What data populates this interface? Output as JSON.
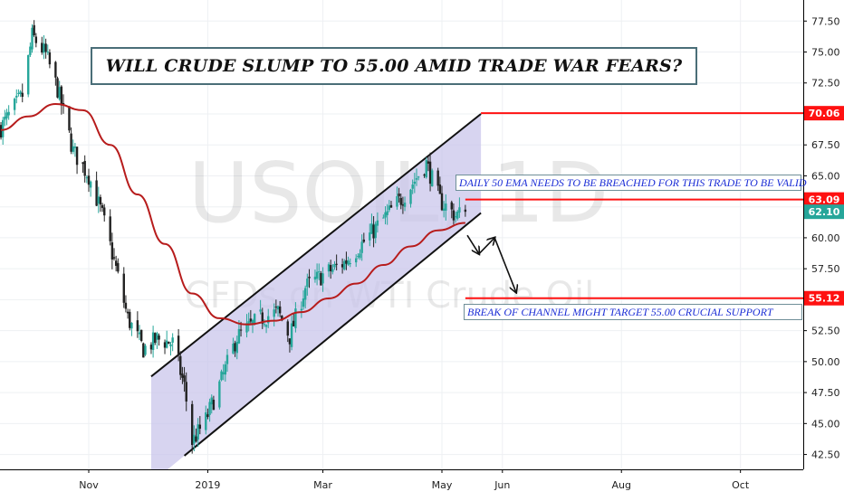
{
  "title": "WILL CRUDE SLUMP TO 55.00 AMID TRADE WAR FEARS?",
  "notes": {
    "ema": "DAILY 50 EMA NEEDS TO BE BREACHED FOR THIS TRADE TO BE VALID",
    "break": "BREAK OF CHANNEL MIGHT TARGET 55.00 CRUCIAL SUPPORT"
  },
  "watermark": {
    "symbol": "USOIL, 1D",
    "description": "CFDs on WTI Crude Oil"
  },
  "colors": {
    "up": "#26a69a",
    "down": "#222222",
    "ema": "#b71c1c",
    "level": "#ff1111",
    "last": "#26a69a",
    "channel_fill": "#c7c3ea",
    "text_blue": "#1d2fd6"
  },
  "chart_data": {
    "type": "candlestick",
    "symbol": "USOIL",
    "timeframe": "1D",
    "x_ticks": [
      "Nov",
      "2019",
      "Mar",
      "May",
      "Jun",
      "Aug",
      "Oct"
    ],
    "y_ticks": [
      "42.50",
      "45.00",
      "47.50",
      "50.00",
      "52.50",
      "55.00",
      "57.50",
      "60.00",
      "62.50",
      "65.00",
      "67.50",
      "70.00",
      "72.50",
      "75.00",
      "77.50"
    ],
    "ylim": [
      41.3,
      79.2
    ],
    "price_path": [
      [
        "2018-09-17",
        68.9
      ],
      [
        "2018-09-28",
        71.5
      ],
      [
        "2018-10-03",
        76.3
      ],
      [
        "2018-10-10",
        74.8
      ],
      [
        "2018-10-16",
        72.0
      ],
      [
        "2018-10-24",
        67.0
      ],
      [
        "2018-11-01",
        65.0
      ],
      [
        "2018-11-08",
        61.8
      ],
      [
        "2018-11-15",
        57.5
      ],
      [
        "2018-11-21",
        53.5
      ],
      [
        "2018-11-29",
        51.0
      ],
      [
        "2018-12-06",
        51.8
      ],
      [
        "2018-12-14",
        51.5
      ],
      [
        "2018-12-20",
        48.0
      ],
      [
        "2018-12-24",
        43.5
      ],
      [
        "2018-12-31",
        45.3
      ],
      [
        "2019-01-08",
        48.5
      ],
      [
        "2019-01-16",
        52.0
      ],
      [
        "2019-01-28",
        53.5
      ],
      [
        "2019-02-06",
        54.0
      ],
      [
        "2019-02-12",
        52.0
      ],
      [
        "2019-02-20",
        56.0
      ],
      [
        "2019-03-01",
        57.0
      ],
      [
        "2019-03-12",
        58.0
      ],
      [
        "2019-03-21",
        59.5
      ],
      [
        "2019-04-01",
        61.5
      ],
      [
        "2019-04-12",
        63.5
      ],
      [
        "2019-04-23",
        66.0
      ],
      [
        "2019-04-30",
        63.0
      ],
      [
        "2019-05-08",
        61.8
      ],
      [
        "2019-05-13",
        62.1
      ]
    ],
    "ema_50": [
      [
        "2018-09-17",
        68.7
      ],
      [
        "2018-10-01",
        69.8
      ],
      [
        "2018-10-15",
        70.8
      ],
      [
        "2018-10-29",
        70.3
      ],
      [
        "2018-11-12",
        67.5
      ],
      [
        "2018-11-26",
        63.5
      ],
      [
        "2018-12-10",
        59.5
      ],
      [
        "2018-12-24",
        55.5
      ],
      [
        "2019-01-07",
        53.5
      ],
      [
        "2019-01-21",
        53.0
      ],
      [
        "2019-02-04",
        53.3
      ],
      [
        "2019-02-18",
        54.0
      ],
      [
        "2019-03-04",
        55.1
      ],
      [
        "2019-03-18",
        56.3
      ],
      [
        "2019-04-01",
        57.8
      ],
      [
        "2019-04-15",
        59.3
      ],
      [
        "2019-04-29",
        60.6
      ],
      [
        "2019-05-13",
        61.2
      ]
    ],
    "channel": {
      "upper": [
        [
          "2018-12-03",
          48.8
        ],
        [
          "2019-05-21",
          70.0
        ]
      ],
      "lower": [
        [
          "2018-12-20",
          42.4
        ],
        [
          "2019-05-21",
          62.0
        ]
      ],
      "shaded_start": "2018-12-03"
    },
    "levels": [
      {
        "label": "70.06",
        "value": 70.06,
        "start": "2019-05-21"
      },
      {
        "label": "63.09",
        "value": 63.09,
        "start": "2019-05-13"
      },
      {
        "label": "55.12",
        "value": 55.12,
        "start": "2019-05-13"
      }
    ],
    "last_price": {
      "label": "62.10",
      "value": 62.1
    },
    "projection": [
      [
        "2019-05-14",
        60.2
      ],
      [
        "2019-05-20",
        58.7
      ],
      [
        "2019-05-28",
        60.0
      ],
      [
        "2019-06-08",
        55.6
      ]
    ]
  }
}
